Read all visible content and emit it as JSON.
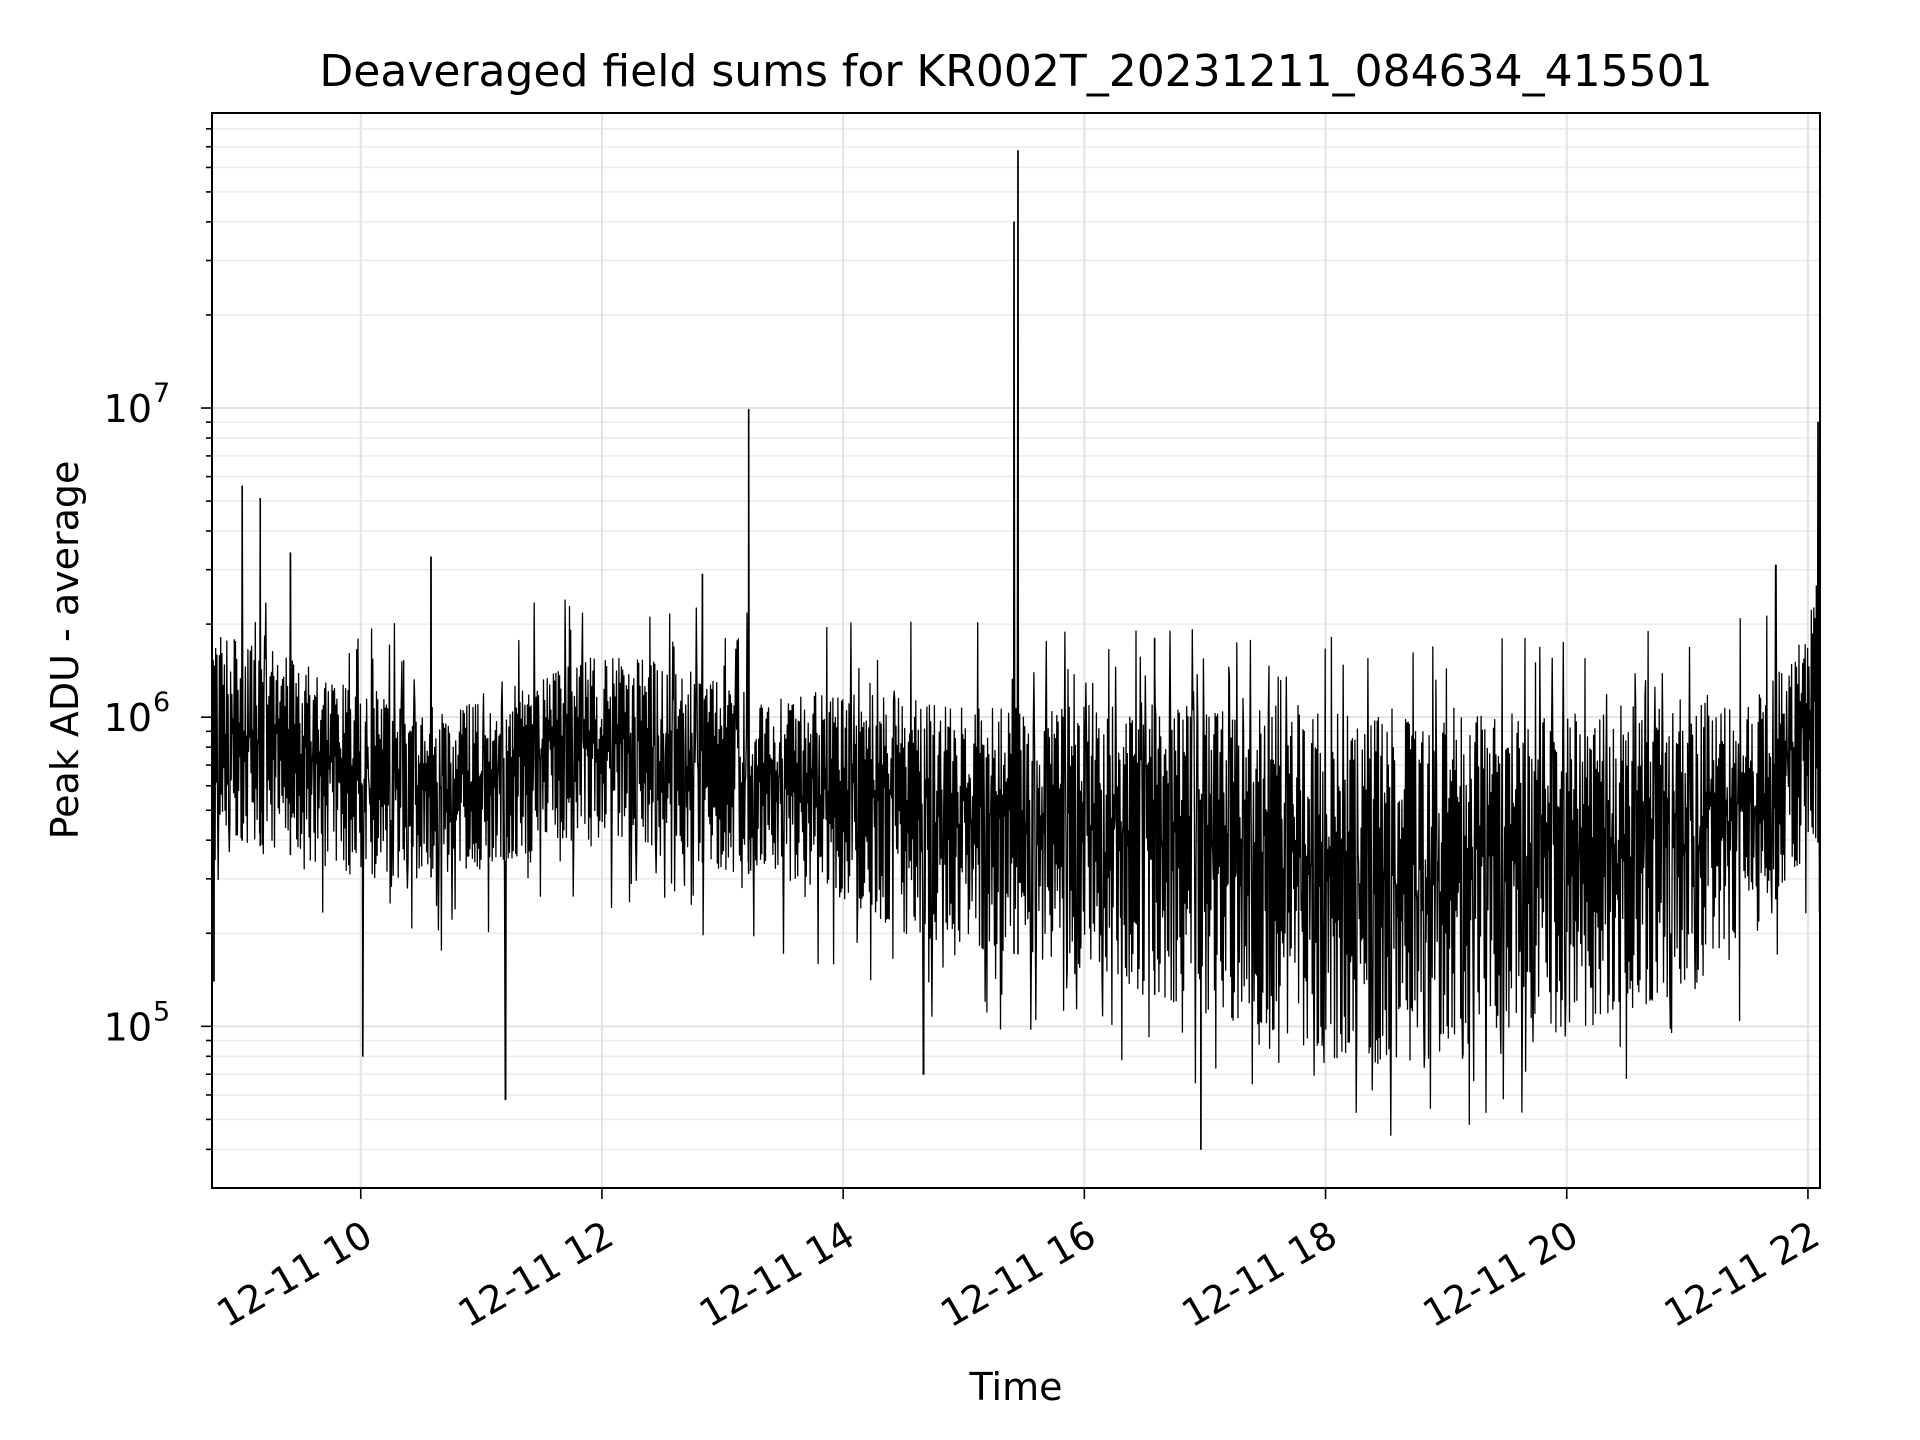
{
  "chart_data": {
    "type": "line",
    "title": "Deaveraged field sums for KR002T_20231211_084634_415501",
    "xlabel": "Time",
    "ylabel": "Peak ADU - average",
    "x_range": [
      "2023-12-11 08:46",
      "2023-12-11 22:06"
    ],
    "y_scale": "log",
    "ylim": [
      30000,
      90000000
    ],
    "grid": true,
    "line_color": "#000000",
    "x_ticks": [
      {
        "value": "2023-12-11 10:00",
        "label": "12-11 10"
      },
      {
        "value": "2023-12-11 12:00",
        "label": "12-11 12"
      },
      {
        "value": "2023-12-11 14:00",
        "label": "12-11 14"
      },
      {
        "value": "2023-12-11 16:00",
        "label": "12-11 16"
      },
      {
        "value": "2023-12-11 18:00",
        "label": "12-11 18"
      },
      {
        "value": "2023-12-11 20:00",
        "label": "12-11 20"
      },
      {
        "value": "2023-12-11 22:00",
        "label": "12-11 22"
      }
    ],
    "y_ticks": [
      {
        "value": 100000,
        "base": "10",
        "exp": "5"
      },
      {
        "value": 1000000,
        "base": "10",
        "exp": "6"
      },
      {
        "value": 10000000,
        "base": "10",
        "exp": "7"
      }
    ],
    "envelope": {
      "description": "Dense noisy series; upper and lower bounds of the oscillation band over time",
      "time": [
        "08:46",
        "09:00",
        "09:30",
        "10:00",
        "10:30",
        "11:00",
        "11:30",
        "12:00",
        "12:30",
        "13:00",
        "13:30",
        "14:00",
        "14:30",
        "15:00",
        "15:30",
        "16:00",
        "16:30",
        "17:00",
        "17:30",
        "18:00",
        "18:30",
        "19:00",
        "19:30",
        "20:00",
        "20:30",
        "21:00",
        "21:30",
        "21:50",
        "22:06"
      ],
      "upper": [
        2000000,
        1800000,
        1500000,
        1200000,
        1100000,
        1100000,
        1400000,
        1600000,
        1500000,
        1300000,
        1150000,
        1200000,
        1150000,
        1150000,
        1100000,
        1100000,
        1100000,
        1100000,
        1100000,
        1100000,
        1000000,
        1000000,
        1050000,
        1050000,
        1100000,
        1200000,
        1200000,
        1500000,
        3000000
      ],
      "lower": [
        500000,
        400000,
        350000,
        300000,
        300000,
        320000,
        380000,
        400000,
        380000,
        320000,
        300000,
        260000,
        200000,
        180000,
        170000,
        150000,
        130000,
        110000,
        100000,
        80000,
        75000,
        80000,
        90000,
        95000,
        110000,
        130000,
        180000,
        300000,
        400000
      ]
    },
    "spikes": [
      {
        "time": "08:47",
        "value": 140000
      },
      {
        "time": "09:01",
        "value": 5600000
      },
      {
        "time": "09:10",
        "value": 5100000
      },
      {
        "time": "09:25",
        "value": 3400000
      },
      {
        "time": "10:35",
        "value": 3300000
      },
      {
        "time": "10:01",
        "value": 80000
      },
      {
        "time": "11:12",
        "value": 58000
      },
      {
        "time": "12:50",
        "value": 2900000
      },
      {
        "time": "13:13",
        "value": 9900000
      },
      {
        "time": "14:40",
        "value": 70000
      },
      {
        "time": "15:25",
        "value": 40000000
      },
      {
        "time": "15:27",
        "value": 68000000
      },
      {
        "time": "16:35",
        "value": 1800000
      },
      {
        "time": "16:58",
        "value": 40000
      },
      {
        "time": "21:44",
        "value": 3100000
      },
      {
        "time": "22:05",
        "value": 9000000
      }
    ]
  }
}
